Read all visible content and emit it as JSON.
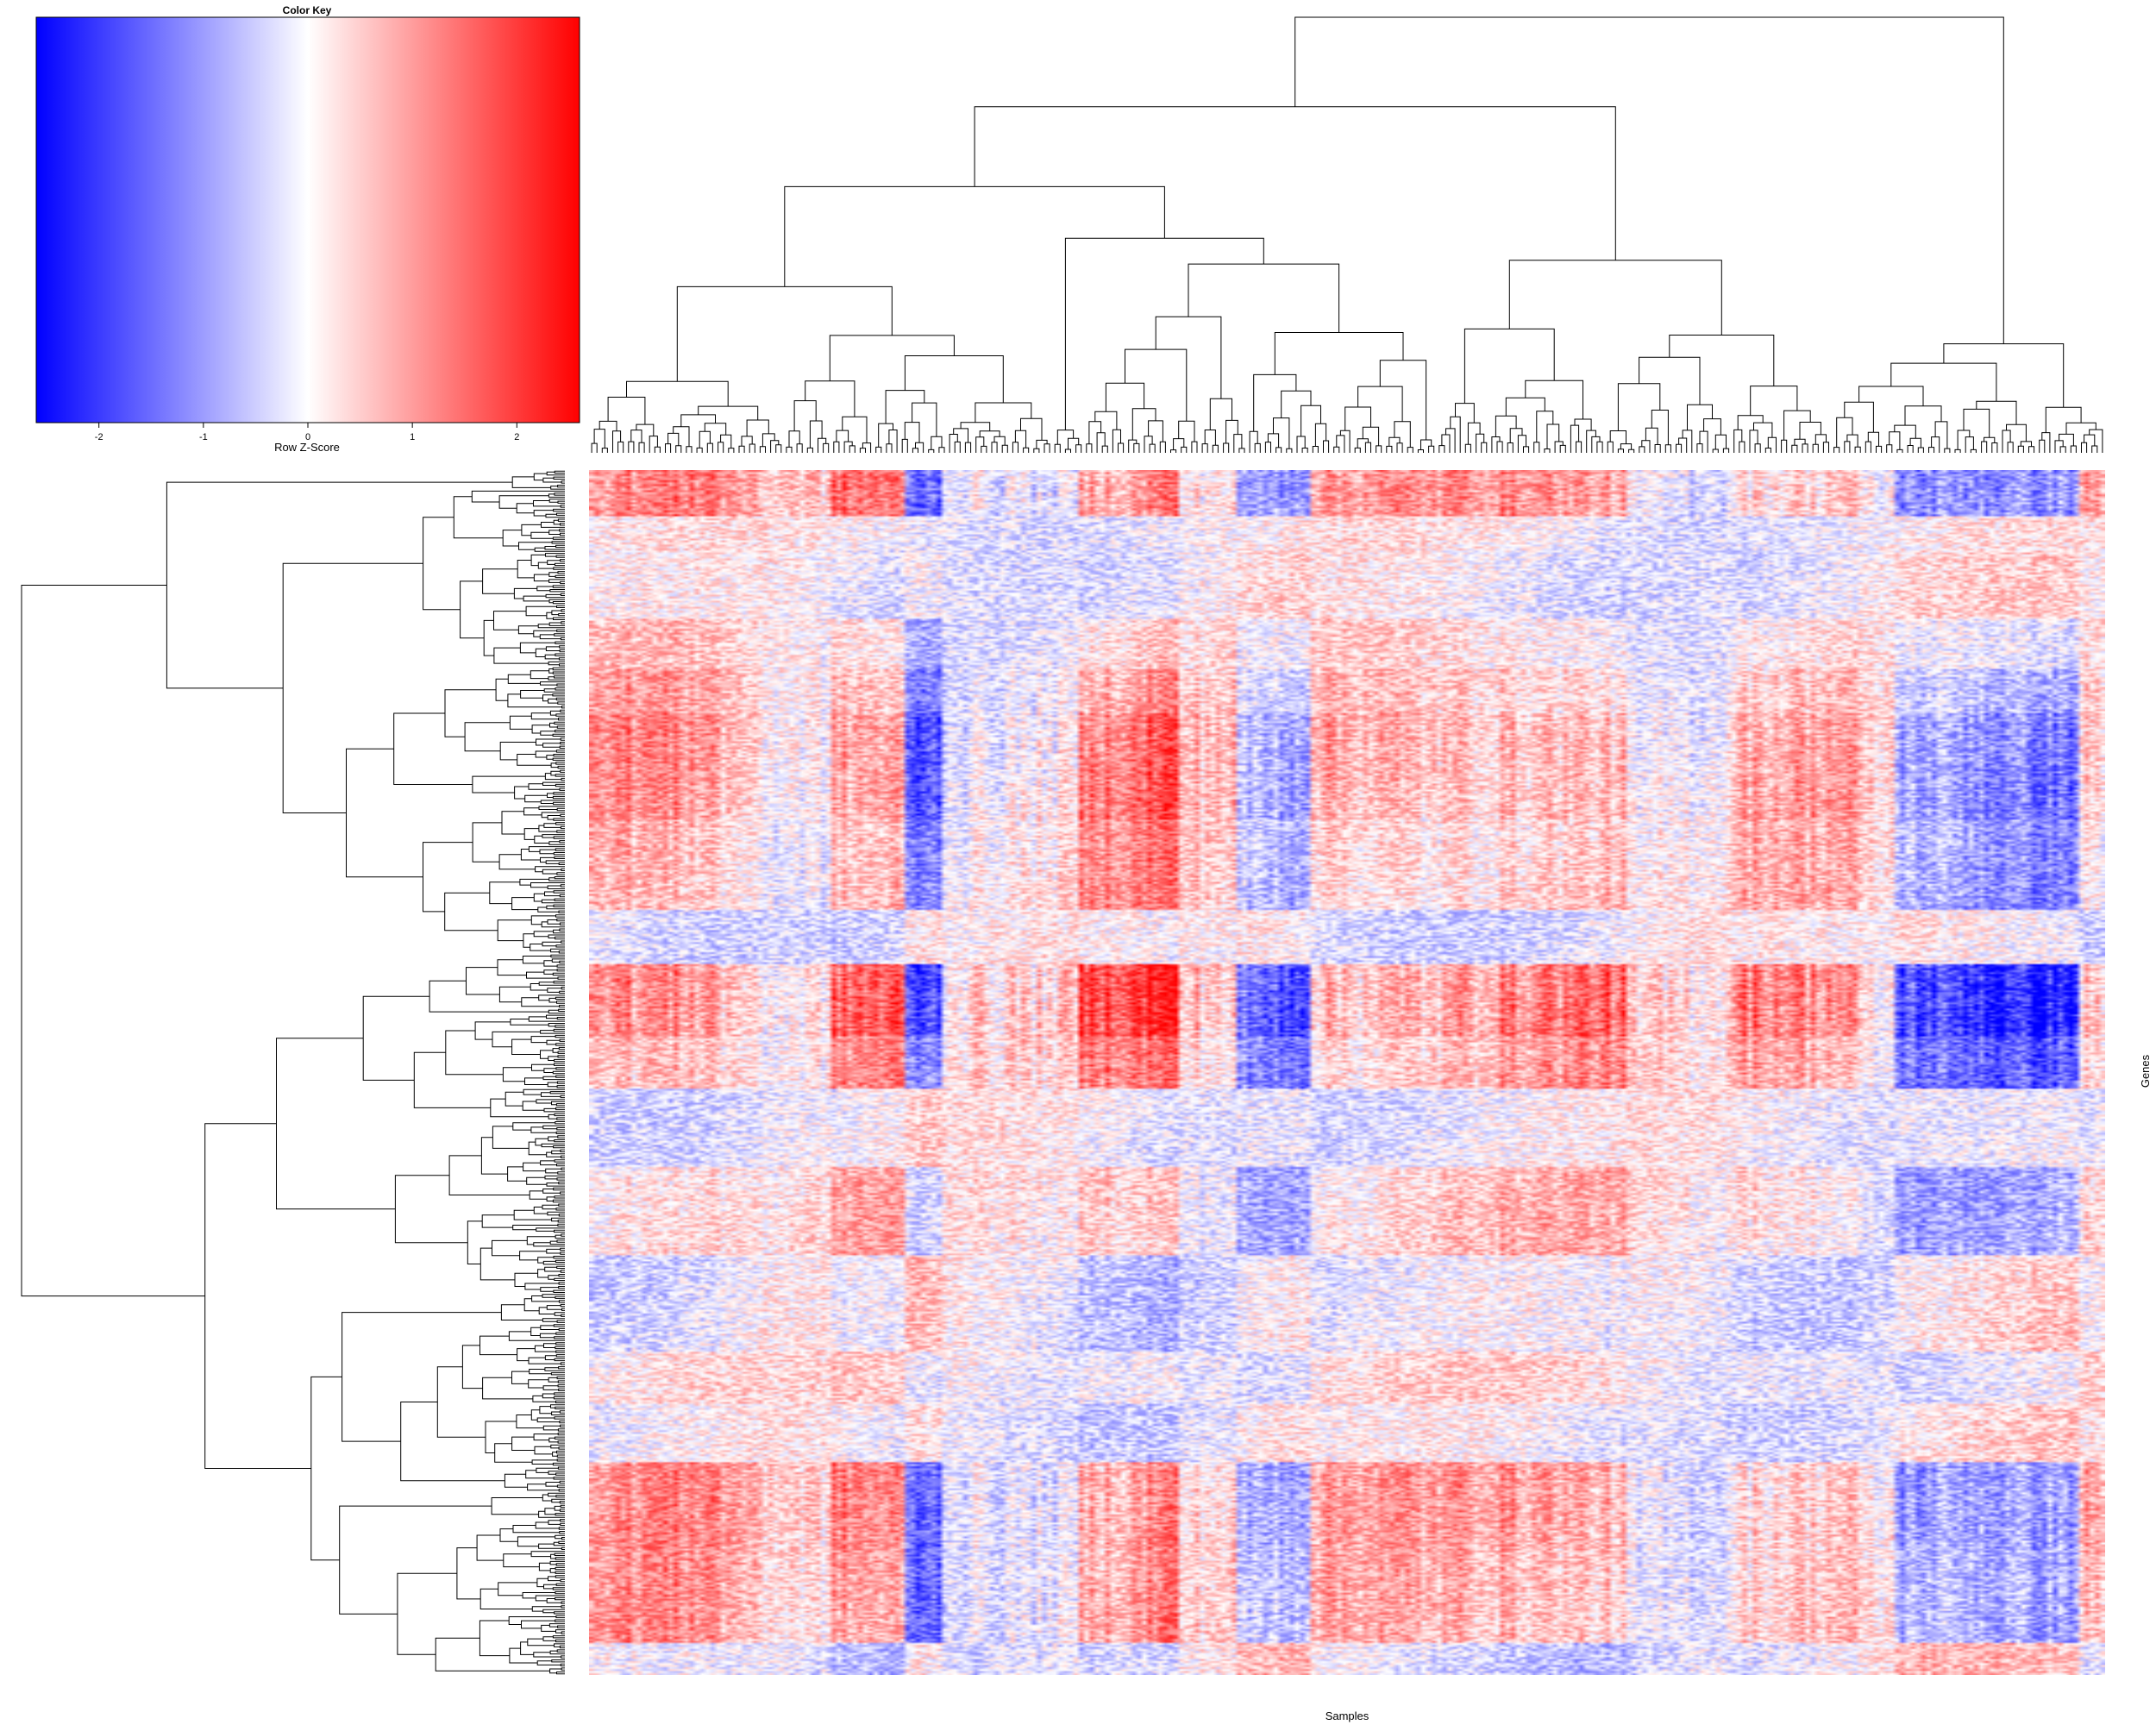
{
  "chart_data": {
    "type": "heatmap",
    "title": "",
    "xlabel": "Samples",
    "ylabel": "Genes",
    "color_key": {
      "title": "Color Key",
      "xlabel": "Row Z-Score",
      "range": [
        -2.6,
        2.6
      ],
      "ticks": [
        -2,
        -1,
        0,
        1,
        2
      ],
      "tick_labels": [
        "-2",
        "-1",
        "0",
        "1",
        "2"
      ],
      "low_color": "#0000ff",
      "mid_color": "#ffffff",
      "high_color": "#ff0000"
    },
    "n_samples": 288,
    "n_genes": 600,
    "values_note_shown": "per-cell row z-scores are not printed on the figure",
    "row_dendrogram": true,
    "column_dendrogram": true,
    "grid": false,
    "legend": "top-left"
  }
}
